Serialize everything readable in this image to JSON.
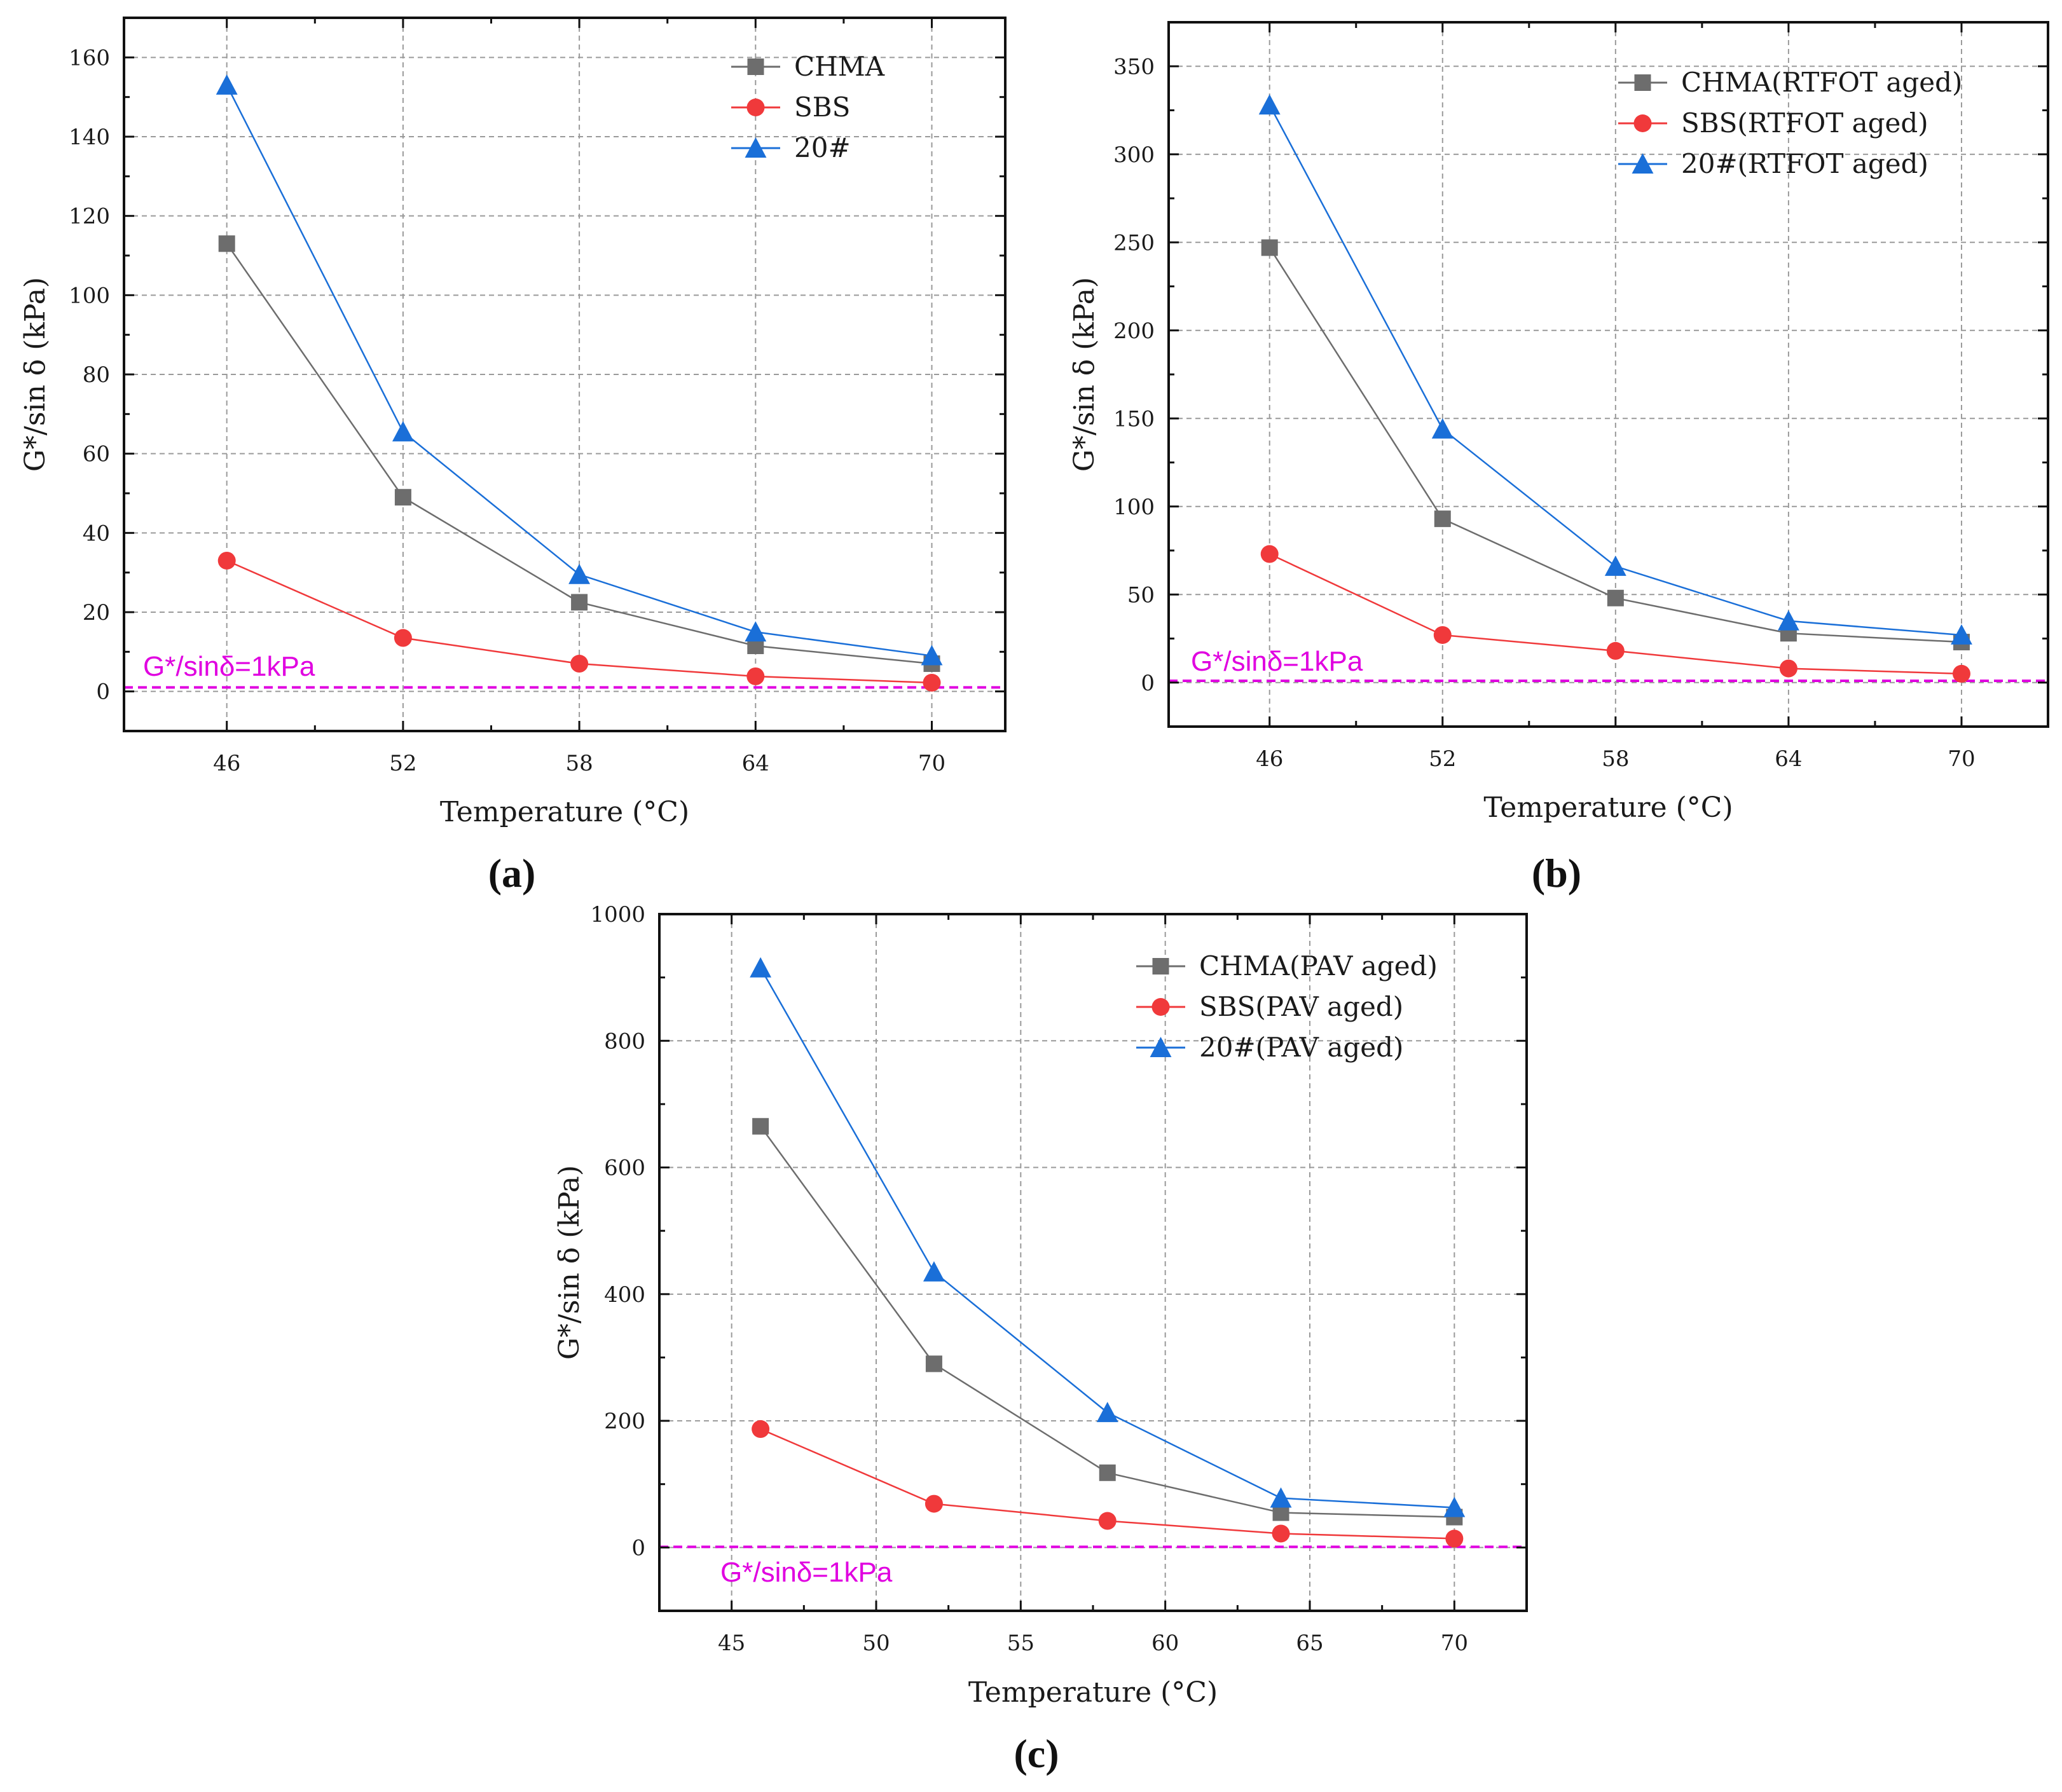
{
  "chart_data": [
    {
      "type": "line",
      "panel": "(a)",
      "xlabel": "Temperature (°C)",
      "ylabel": "G*/sin δ  (kPa)",
      "x": [
        46,
        52,
        58,
        64,
        70
      ],
      "xticks": [
        "46",
        "52",
        "58",
        "64",
        "70"
      ],
      "xlim": [
        42.5,
        72.5
      ],
      "ylim": [
        -10,
        170
      ],
      "yticks": [
        0,
        20,
        40,
        60,
        80,
        100,
        120,
        140,
        160
      ],
      "grid": true,
      "legend_position": "top-right",
      "series": [
        {
          "name": "CHMA",
          "marker": "square",
          "color": "#6d6d6d",
          "values": [
            113,
            49,
            22.5,
            11.5,
            7
          ]
        },
        {
          "name": "SBS",
          "marker": "circle",
          "color": "#f0393b",
          "values": [
            33,
            13.5,
            7,
            3.8,
            2.2
          ]
        },
        {
          "name": "20#",
          "marker": "triangle",
          "color": "#1a6fd8",
          "values": [
            153,
            65.5,
            29.5,
            15,
            9
          ]
        }
      ],
      "reference_line": {
        "value": 1,
        "label": "G*/sinδ=1kPa",
        "color": "#e000e0"
      }
    },
    {
      "type": "line",
      "panel": "(b)",
      "xlabel": "Temperature (°C)",
      "ylabel": "G*/sin δ  (kPa)",
      "x": [
        46,
        52,
        58,
        64,
        70
      ],
      "xticks": [
        "46",
        "52",
        "58",
        "64",
        "70"
      ],
      "xlim": [
        42.5,
        73
      ],
      "ylim": [
        -25,
        375
      ],
      "yticks": [
        0,
        50,
        100,
        150,
        200,
        250,
        300,
        350
      ],
      "grid": true,
      "legend_position": "top-right",
      "series": [
        {
          "name": "CHMA(RTFOT aged)",
          "marker": "square",
          "color": "#6d6d6d",
          "values": [
            247,
            93,
            48,
            28,
            23
          ]
        },
        {
          "name": "SBS(RTFOT aged)",
          "marker": "circle",
          "color": "#f0393b",
          "values": [
            73,
            27,
            18,
            8,
            5
          ]
        },
        {
          "name": "20#(RTFOT aged)",
          "marker": "triangle",
          "color": "#1a6fd8",
          "values": [
            328,
            144,
            66,
            35,
            27
          ]
        }
      ],
      "reference_line": {
        "value": 1,
        "label": "G*/sinδ=1kPa",
        "color": "#e000e0"
      }
    },
    {
      "type": "line",
      "panel": "(c)",
      "xlabel": "Temperature (°C)",
      "ylabel": "G*/sin δ  (kPa)",
      "x": [
        46,
        52,
        58,
        64,
        70
      ],
      "xticks": [
        "45",
        "50",
        "55",
        "60",
        "65",
        "70"
      ],
      "xlim": [
        42.5,
        72.5
      ],
      "ylim": [
        -100,
        1000
      ],
      "yticks": [
        0,
        200,
        400,
        600,
        800,
        1000
      ],
      "grid": true,
      "legend_position": "top-right",
      "series": [
        {
          "name": "CHMA(PAV aged)",
          "marker": "square",
          "color": "#6d6d6d",
          "values": [
            665,
            290,
            118,
            55,
            48
          ]
        },
        {
          "name": "SBS(PAV aged)",
          "marker": "circle",
          "color": "#f0393b",
          "values": [
            187,
            69,
            42,
            22,
            14
          ]
        },
        {
          "name": "20#(PAV aged)",
          "marker": "triangle",
          "color": "#1a6fd8",
          "values": [
            915,
            435,
            213,
            78,
            63
          ]
        }
      ],
      "reference_line": {
        "value": 1,
        "label": "G*/sinδ=1kPa",
        "color": "#e000e0"
      }
    }
  ]
}
